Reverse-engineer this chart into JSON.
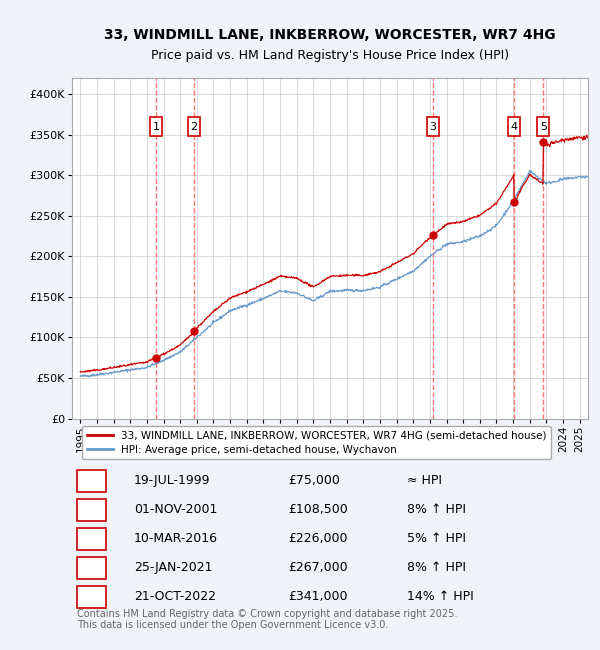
{
  "title_line1": "33, WINDMILL LANE, INKBERROW, WORCESTER, WR7 4HG",
  "title_line2": "Price paid vs. HM Land Registry's House Price Index (HPI)",
  "ylabel": "",
  "xlabel": "",
  "ylim": [
    0,
    420000
  ],
  "yticks": [
    0,
    50000,
    100000,
    150000,
    200000,
    250000,
    300000,
    350000,
    400000
  ],
  "ytick_labels": [
    "£0",
    "£50K",
    "£100K",
    "£150K",
    "£200K",
    "£250K",
    "£300K",
    "£350K",
    "£400K"
  ],
  "xlim": [
    1994.5,
    2025.5
  ],
  "xticks": [
    1995,
    1996,
    1997,
    1998,
    1999,
    2000,
    2001,
    2002,
    2003,
    2004,
    2005,
    2006,
    2007,
    2008,
    2009,
    2010,
    2011,
    2012,
    2013,
    2014,
    2015,
    2016,
    2017,
    2018,
    2019,
    2020,
    2021,
    2022,
    2023,
    2024,
    2025
  ],
  "sale_dates_x": [
    1999.55,
    2001.84,
    2016.19,
    2021.07,
    2022.81
  ],
  "sale_prices_y": [
    75000,
    108500,
    226000,
    267000,
    341000
  ],
  "sale_labels": [
    "1",
    "2",
    "3",
    "4",
    "5"
  ],
  "legend_entries": [
    "33, WINDMILL LANE, INKBERROW, WORCESTER, WR7 4HG (semi-detached house)",
    "HPI: Average price, semi-detached house, Wychavon"
  ],
  "legend_colors": [
    "#cc0000",
    "#6699cc"
  ],
  "table_rows": [
    [
      "1",
      "19-JUL-1999",
      "£75,000",
      "≈ HPI"
    ],
    [
      "2",
      "01-NOV-2001",
      "£108,500",
      "8% ↑ HPI"
    ],
    [
      "3",
      "10-MAR-2016",
      "£226,000",
      "5% ↑ HPI"
    ],
    [
      "4",
      "25-JAN-2021",
      "£267,000",
      "8% ↑ HPI"
    ],
    [
      "5",
      "21-OCT-2022",
      "£341,000",
      "14% ↑ HPI"
    ]
  ],
  "footer_text": "Contains HM Land Registry data © Crown copyright and database right 2025.\nThis data is licensed under the Open Government Licence v3.0.",
  "bg_color": "#f0f4f8",
  "plot_bg_color": "#ffffff",
  "grid_color": "#cccccc",
  "sale_line_color": "#cc0000",
  "hpi_line_color": "#6699cc",
  "vline_color": "#ff6666",
  "box_color": "#cc0000",
  "hpi_base_values": {
    "1995": 52000,
    "1996": 54000,
    "1997": 57000,
    "1998": 60000,
    "1999": 63000,
    "2000": 72000,
    "2001": 82000,
    "2002": 100000,
    "2003": 118000,
    "2004": 133000,
    "2005": 140000,
    "2006": 148000,
    "2007": 157000,
    "2008": 155000,
    "2009": 145000,
    "2010": 157000,
    "2011": 158000,
    "2012": 158000,
    "2013": 162000,
    "2014": 172000,
    "2015": 182000,
    "2016": 200000,
    "2017": 215000,
    "2018": 218000,
    "2019": 225000,
    "2020": 238000,
    "2021": 268000,
    "2022": 305000,
    "2023": 290000,
    "2024": 295000,
    "2025": 298000
  }
}
